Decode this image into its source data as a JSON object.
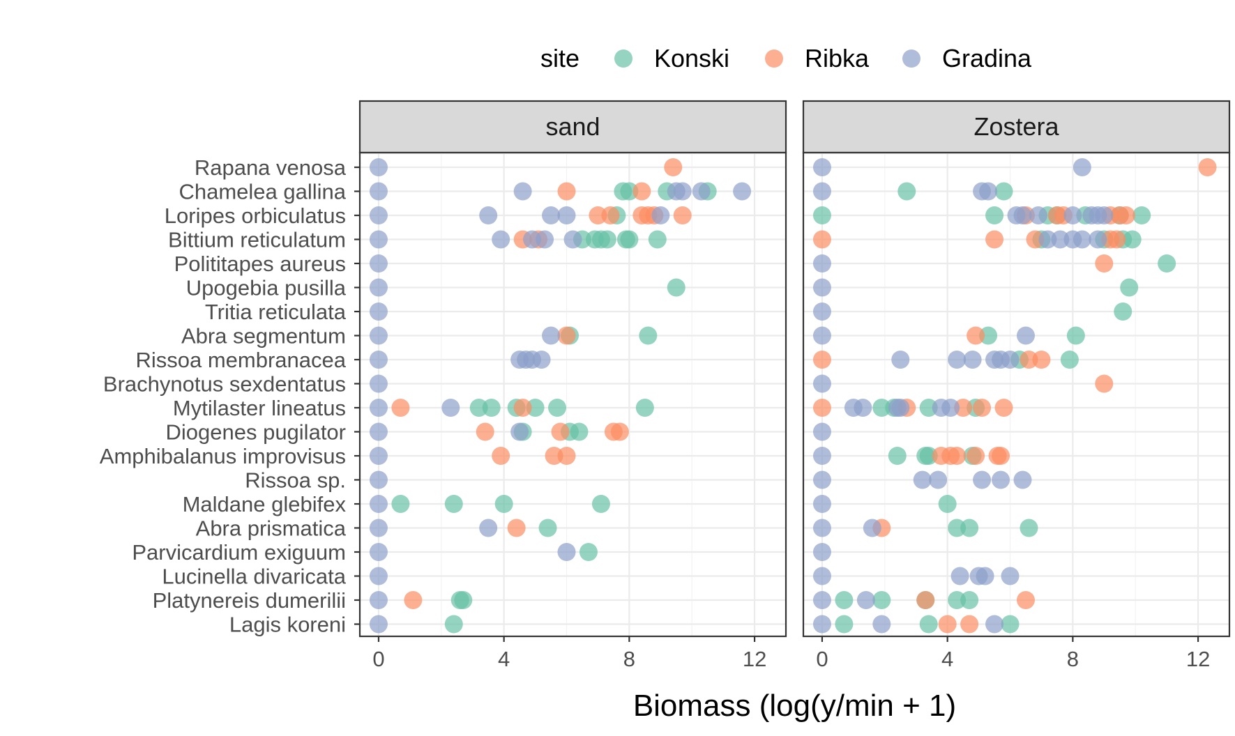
{
  "chart_data": {
    "type": "scatter",
    "xlabel": "Biomass (log(y/min + 1)",
    "xlim": [
      -0.6,
      13.0
    ],
    "xticks": [
      0,
      4,
      8,
      12
    ],
    "legend": {
      "title": "site",
      "placement": "top",
      "entries": [
        {
          "name": "Konski",
          "color": "#66c2a5"
        },
        {
          "name": "Ribka",
          "color": "#fc8d62"
        },
        {
          "name": "Gradina",
          "color": "#8da0cb"
        }
      ]
    },
    "species": [
      "Rapana venosa",
      "Chamelea gallina",
      "Loripes orbiculatus",
      "Bittium reticulatum",
      "Polititapes aureus",
      "Upogebia pusilla",
      "Tritia reticulata",
      "Abra segmentum",
      "Rissoa membranacea",
      "Brachynotus sexdentatus",
      "Mytilaster lineatus",
      "Diogenes pugilator",
      "Amphibalanus improvisus",
      "Rissoa sp.",
      "Maldane glebifex",
      "Abra prismatica",
      "Parvicardium exiguum",
      "Lucinella divaricata",
      "Platynereis dumerilii",
      "Lagis koreni"
    ],
    "panels": [
      {
        "name": "sand",
        "series": [
          {
            "name": "Konski",
            "points": [
              {
                "species": "Chamelea gallina",
                "x": [
                  7.8,
                  8.0,
                  9.2,
                  10.5
                ]
              },
              {
                "species": "Loripes orbiculatus",
                "x": [
                  7.6
                ]
              },
              {
                "species": "Bittium reticulatum",
                "x": [
                  6.5,
                  6.9,
                  7.1,
                  7.3,
                  7.9,
                  8.0,
                  8.9
                ]
              },
              {
                "species": "Upogebia pusilla",
                "x": [
                  9.5
                ]
              },
              {
                "species": "Abra segmentum",
                "x": [
                  6.1,
                  8.6
                ]
              },
              {
                "species": "Mytilaster lineatus",
                "x": [
                  3.2,
                  3.6,
                  4.4,
                  5.0,
                  5.7,
                  8.5
                ]
              },
              {
                "species": "Diogenes pugilator",
                "x": [
                  4.6,
                  6.1,
                  6.4
                ]
              },
              {
                "species": "Amphibalanus improvisus",
                "x": []
              },
              {
                "species": "Maldane glebifex",
                "x": [
                  0.7,
                  2.4,
                  4.0,
                  7.1
                ]
              },
              {
                "species": "Abra prismatica",
                "x": [
                  5.4
                ]
              },
              {
                "species": "Parvicardium exiguum",
                "x": [
                  6.7
                ]
              },
              {
                "species": "Platynereis dumerilii",
                "x": [
                  2.6,
                  2.7
                ]
              },
              {
                "species": "Lagis koreni",
                "x": [
                  2.4
                ]
              }
            ]
          },
          {
            "name": "Ribka",
            "points": [
              {
                "species": "Rapana venosa",
                "x": [
                  9.4
                ]
              },
              {
                "species": "Chamelea gallina",
                "x": [
                  6.0,
                  8.4
                ]
              },
              {
                "species": "Loripes orbiculatus",
                "x": [
                  7.0,
                  7.4,
                  8.4,
                  8.6,
                  8.8,
                  9.7
                ]
              },
              {
                "species": "Bittium reticulatum",
                "x": [
                  4.6,
                  5.1
                ]
              },
              {
                "species": "Abra segmentum",
                "x": [
                  6.0
                ]
              },
              {
                "species": "Mytilaster lineatus",
                "x": [
                  0.7,
                  4.6
                ]
              },
              {
                "species": "Diogenes pugilator",
                "x": [
                  3.4,
                  5.8,
                  7.5,
                  7.7
                ]
              },
              {
                "species": "Amphibalanus improvisus",
                "x": [
                  3.9,
                  5.6,
                  6.0
                ]
              },
              {
                "species": "Abra prismatica",
                "x": [
                  4.4
                ]
              },
              {
                "species": "Platynereis dumerilii",
                "x": [
                  1.1
                ]
              }
            ]
          },
          {
            "name": "Gradina",
            "points": [
              {
                "species": "Rapana venosa",
                "x": [
                  0
                ]
              },
              {
                "species": "Chamelea gallina",
                "x": [
                  0,
                  4.6,
                  9.5,
                  9.7,
                  10.3,
                  11.6
                ]
              },
              {
                "species": "Loripes orbiculatus",
                "x": [
                  0,
                  3.5,
                  5.5,
                  6.0,
                  9.0
                ]
              },
              {
                "species": "Bittium reticulatum",
                "x": [
                  0,
                  3.9,
                  4.9,
                  5.3,
                  6.2
                ]
              },
              {
                "species": "Polititapes aureus",
                "x": [
                  0
                ]
              },
              {
                "species": "Upogebia pusilla",
                "x": [
                  0
                ]
              },
              {
                "species": "Tritia reticulata",
                "x": [
                  0
                ]
              },
              {
                "species": "Abra segmentum",
                "x": [
                  0,
                  5.5
                ]
              },
              {
                "species": "Rissoa membranacea",
                "x": [
                  0,
                  4.5,
                  4.7,
                  4.9,
                  5.2
                ]
              },
              {
                "species": "Brachynotus sexdentatus",
                "x": [
                  0
                ]
              },
              {
                "species": "Mytilaster lineatus",
                "x": [
                  0,
                  2.3
                ]
              },
              {
                "species": "Diogenes pugilator",
                "x": [
                  0,
                  4.5
                ]
              },
              {
                "species": "Amphibalanus improvisus",
                "x": [
                  0
                ]
              },
              {
                "species": "Rissoa sp.",
                "x": [
                  0
                ]
              },
              {
                "species": "Maldane glebifex",
                "x": [
                  0
                ]
              },
              {
                "species": "Abra prismatica",
                "x": [
                  0,
                  3.5
                ]
              },
              {
                "species": "Parvicardium exiguum",
                "x": [
                  0,
                  6.0
                ]
              },
              {
                "species": "Lucinella divaricata",
                "x": [
                  0
                ]
              },
              {
                "species": "Platynereis dumerilii",
                "x": [
                  0
                ]
              },
              {
                "species": "Lagis koreni",
                "x": [
                  0
                ]
              }
            ]
          }
        ]
      },
      {
        "name": "Zostera",
        "series": [
          {
            "name": "Konski",
            "points": [
              {
                "species": "Chamelea gallina",
                "x": [
                  2.7,
                  5.8
                ]
              },
              {
                "species": "Loripes orbiculatus",
                "x": [
                  0,
                  5.5,
                  7.2,
                  7.5,
                  8.4,
                  9.5,
                  10.2
                ]
              },
              {
                "species": "Bittium reticulatum",
                "x": [
                  7.0,
                  9.0,
                  9.6,
                  9.9
                ]
              },
              {
                "species": "Polititapes aureus",
                "x": [
                  11.0
                ]
              },
              {
                "species": "Upogebia pusilla",
                "x": [
                  9.8
                ]
              },
              {
                "species": "Tritia reticulata",
                "x": [
                  9.6
                ]
              },
              {
                "species": "Abra segmentum",
                "x": [
                  5.3,
                  8.1
                ]
              },
              {
                "species": "Rissoa membranacea",
                "x": [
                  6.3,
                  7.9
                ]
              },
              {
                "species": "Mytilaster lineatus",
                "x": [
                  1.9,
                  2.3,
                  3.4,
                  4.9
                ]
              },
              {
                "species": "Amphibalanus improvisus",
                "x": [
                  2.4,
                  3.3,
                  3.4,
                  4.8
                ]
              },
              {
                "species": "Maldane glebifex",
                "x": [
                  4.0
                ]
              },
              {
                "species": "Abra prismatica",
                "x": [
                  4.3,
                  4.7,
                  6.6
                ]
              },
              {
                "species": "Platynereis dumerilii",
                "x": [
                  0.7,
                  1.9,
                  3.3,
                  4.3,
                  4.7
                ]
              },
              {
                "species": "Lagis koreni",
                "x": [
                  0.7,
                  3.4,
                  6.0
                ]
              }
            ]
          },
          {
            "name": "Ribka",
            "points": [
              {
                "species": "Rapana venosa",
                "x": [
                  12.3
                ]
              },
              {
                "species": "Loripes orbiculatus",
                "x": [
                  6.5,
                  7.5,
                  7.7,
                  9.2,
                  9.5,
                  9.7
                ]
              },
              {
                "species": "Bittium reticulatum",
                "x": [
                  0,
                  5.5,
                  6.8,
                  9.2,
                  9.4
                ]
              },
              {
                "species": "Polititapes aureus",
                "x": [
                  9.0
                ]
              },
              {
                "species": "Abra segmentum",
                "x": [
                  4.9
                ]
              },
              {
                "species": "Rissoa membranacea",
                "x": [
                  0,
                  6.6,
                  7.0
                ]
              },
              {
                "species": "Brachynotus sexdentatus",
                "x": [
                  9.0
                ]
              },
              {
                "species": "Mytilaster lineatus",
                "x": [
                  0,
                  2.7,
                  4.5,
                  5.1,
                  5.8
                ]
              },
              {
                "species": "Amphibalanus improvisus",
                "x": [
                  3.8,
                  4.1,
                  4.3,
                  4.9,
                  5.6,
                  5.7
                ]
              },
              {
                "species": "Abra prismatica",
                "x": [
                  1.9
                ]
              },
              {
                "species": "Platynereis dumerilii",
                "x": [
                  3.3,
                  6.5
                ]
              },
              {
                "species": "Lagis koreni",
                "x": [
                  4.0,
                  4.7
                ]
              }
            ]
          },
          {
            "name": "Gradina",
            "points": [
              {
                "species": "Rapana venosa",
                "x": [
                  0,
                  8.3
                ]
              },
              {
                "species": "Chamelea gallina",
                "x": [
                  0,
                  5.1,
                  5.3
                ]
              },
              {
                "species": "Loripes orbiculatus",
                "x": [
                  6.2,
                  6.4,
                  6.9,
                  8.0,
                  8.6,
                  8.8,
                  9.0
                ]
              },
              {
                "species": "Bittium reticulatum",
                "x": [
                  7.2,
                  7.6,
                  8.0,
                  8.3,
                  8.8
                ]
              },
              {
                "species": "Polititapes aureus",
                "x": [
                  0
                ]
              },
              {
                "species": "Upogebia pusilla",
                "x": [
                  0
                ]
              },
              {
                "species": "Tritia reticulata",
                "x": [
                  0
                ]
              },
              {
                "species": "Abra segmentum",
                "x": [
                  0,
                  6.5
                ]
              },
              {
                "species": "Rissoa membranacea",
                "x": [
                  2.5,
                  4.3,
                  4.8,
                  5.5,
                  5.7,
                  6.0
                ]
              },
              {
                "species": "Brachynotus sexdentatus",
                "x": [
                  0
                ]
              },
              {
                "species": "Mytilaster lineatus",
                "x": [
                  1.0,
                  1.3,
                  2.4,
                  2.5,
                  3.8,
                  4.1
                ]
              },
              {
                "species": "Diogenes pugilator",
                "x": [
                  0
                ]
              },
              {
                "species": "Amphibalanus improvisus",
                "x": [
                  0
                ]
              },
              {
                "species": "Rissoa sp.",
                "x": [
                  0,
                  3.2,
                  3.7,
                  5.1,
                  5.7,
                  6.4
                ]
              },
              {
                "species": "Maldane glebifex",
                "x": [
                  0
                ]
              },
              {
                "species": "Abra prismatica",
                "x": [
                  0,
                  1.6
                ]
              },
              {
                "species": "Parvicardium exiguum",
                "x": [
                  0
                ]
              },
              {
                "species": "Lucinella divaricata",
                "x": [
                  0,
                  4.4,
                  5.0,
                  5.2,
                  6.0
                ]
              },
              {
                "species": "Platynereis dumerilii",
                "x": [
                  0,
                  1.4
                ]
              },
              {
                "species": "Lagis koreni",
                "x": [
                  0,
                  1.9,
                  5.5
                ]
              }
            ]
          }
        ]
      }
    ]
  }
}
